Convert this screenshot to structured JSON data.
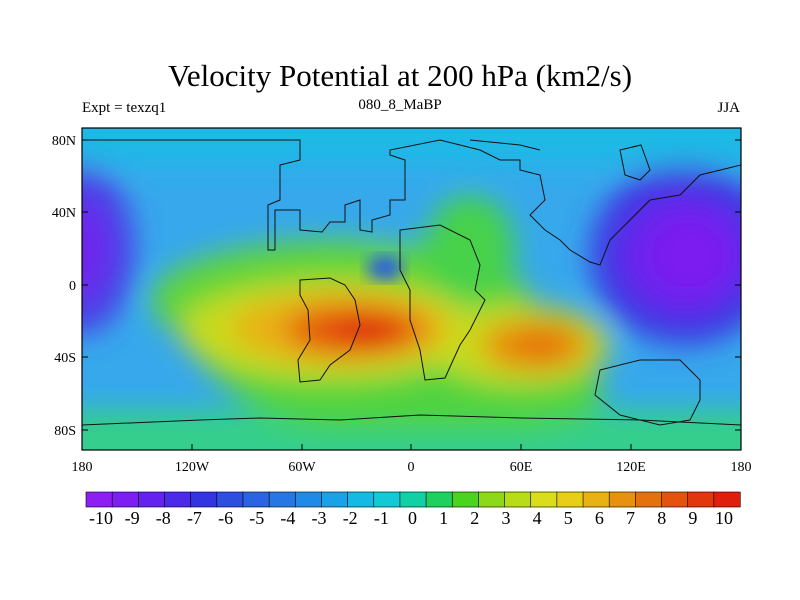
{
  "title": "Velocity Potential at 200 hPa (km2/s)",
  "subtitle_left": "Expt = texzq1",
  "subtitle_center": "080_8_MaBP",
  "subtitle_right": "JJA",
  "lat_labels": [
    "80N",
    "40N",
    "0",
    "40S",
    "80S"
  ],
  "lon_labels": [
    "180",
    "120W",
    "60W",
    "0",
    "60E",
    "120E",
    "180"
  ],
  "colorbar": {
    "labels": [
      "-10",
      "-9",
      "-8",
      "-7",
      "-6",
      "-5",
      "-4",
      "-3",
      "-2",
      "-1",
      "0",
      "1",
      "2",
      "3",
      "4",
      "5",
      "6",
      "7",
      "8",
      "9",
      "10"
    ],
    "colors": [
      "#8d1ff3",
      "#7c1ff0",
      "#6522ee",
      "#4b2ae8",
      "#3434e0",
      "#2e4ee0",
      "#2a63e3",
      "#2577e5",
      "#1f8be8",
      "#1aa2e8",
      "#16b8e4",
      "#13c9d6",
      "#12cfa6",
      "#1fd05f",
      "#4bd41d",
      "#8ed81a",
      "#b9dc19",
      "#d9dd1b",
      "#e8cd19",
      "#e8b114",
      "#e8910f",
      "#e6700d",
      "#e4520c",
      "#e2360c",
      "#df1f0c"
    ]
  },
  "map_colors": {
    "background": "#37a8ec",
    "north_band": "#1ca7e8"
  }
}
